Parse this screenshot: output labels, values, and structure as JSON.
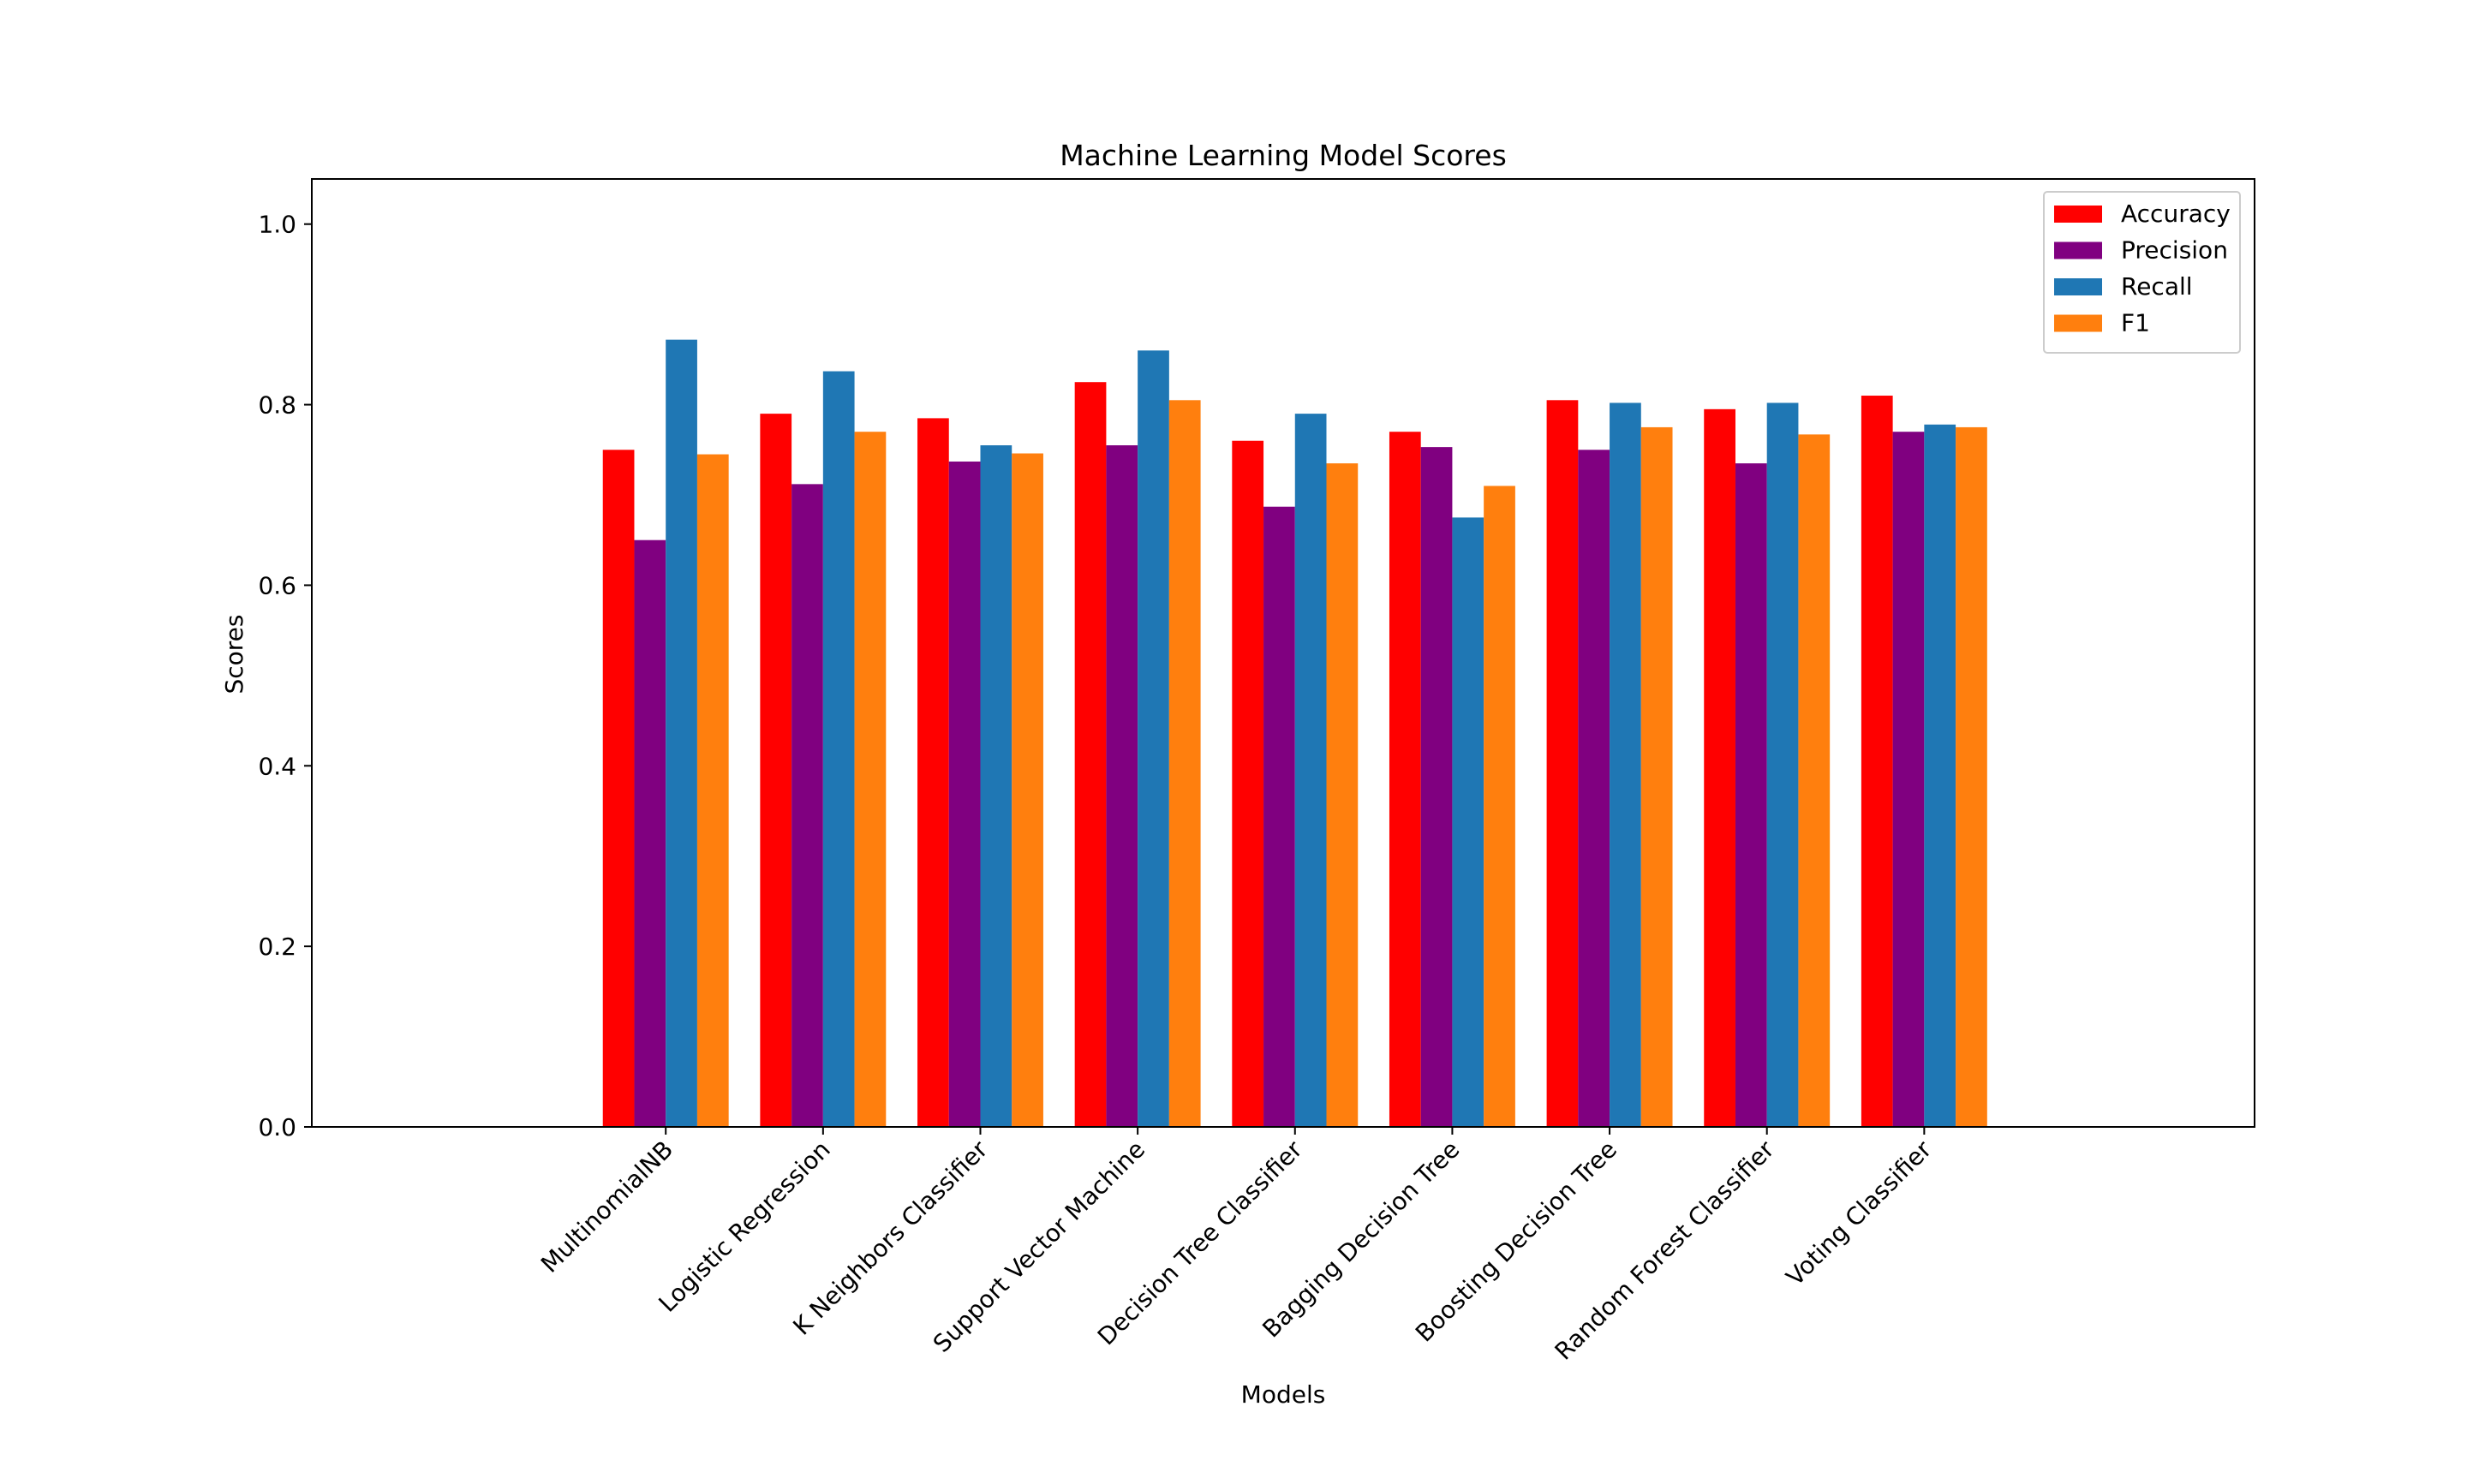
{
  "chart_data": {
    "type": "bar",
    "title": "Machine Learning Model Scores",
    "xlabel": "Models",
    "ylabel": "Scores",
    "ylim": [
      0,
      1.05
    ],
    "xlim": [
      -2.25,
      10.1
    ],
    "yticks": [
      "0.0",
      "0.2",
      "0.4",
      "0.6",
      "0.8",
      "1.0"
    ],
    "ytick_values": [
      0,
      0.2,
      0.4,
      0.6,
      0.8,
      1.0
    ],
    "grid": false,
    "legend_position": "top-right",
    "categories": [
      "MultinomialNB",
      "Logistic Regression",
      "K Neighbors Classifier",
      "Support Vector Machine",
      "Decision Tree Classifier",
      "Bagging Decision Tree",
      "Boosting Decision Tree",
      "Random Forest Classifier",
      "Voting Classifier"
    ],
    "series": [
      {
        "name": "Accuracy",
        "color": "#ff0000",
        "values": [
          0.75,
          0.79,
          0.785,
          0.825,
          0.76,
          0.77,
          0.805,
          0.795,
          0.81
        ]
      },
      {
        "name": "Precision",
        "color": "#800080",
        "values": [
          0.65,
          0.712,
          0.737,
          0.755,
          0.687,
          0.753,
          0.75,
          0.735,
          0.77
        ]
      },
      {
        "name": "Recall",
        "color": "#1f77b4",
        "values": [
          0.872,
          0.837,
          0.755,
          0.86,
          0.79,
          0.675,
          0.802,
          0.802,
          0.778
        ]
      },
      {
        "name": "F1",
        "color": "#ff7f0e",
        "values": [
          0.745,
          0.77,
          0.746,
          0.805,
          0.735,
          0.71,
          0.775,
          0.767,
          0.775
        ]
      }
    ]
  }
}
